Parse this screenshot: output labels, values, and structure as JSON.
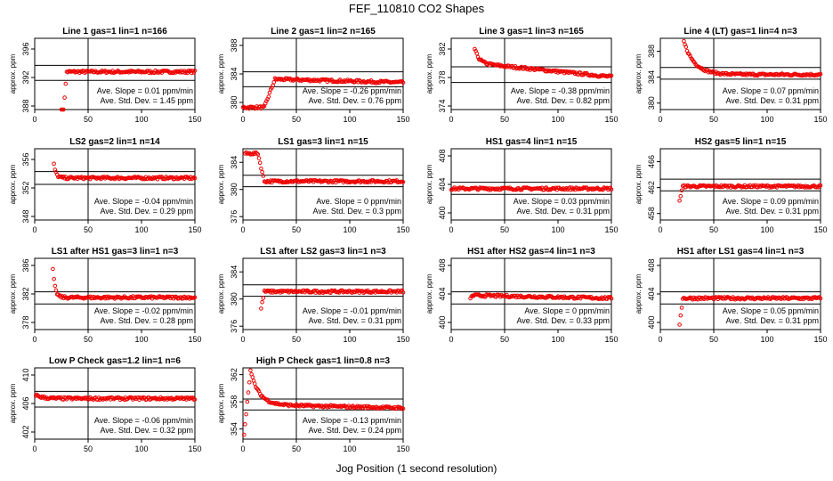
{
  "figure": {
    "title": "FEF_110810  CO2 Shapes",
    "xlabel": "Jog Position (1 second resolution)",
    "ylabel": "approx. ppm",
    "slope_label": "Ave. Slope =",
    "slope_unit": "ppm/min",
    "sd_label": "Ave. Std. Dev. =",
    "sd_unit": "ppm",
    "colors": {
      "points": "#ee0000",
      "axis": "#000000"
    }
  },
  "chart_data": [
    {
      "type": "scatter",
      "title": "Line 1 gas=1 lin=1 n=166",
      "xlim": [
        0,
        150
      ],
      "xticks": [
        0,
        50,
        100,
        150
      ],
      "ylim": [
        387.5,
        397.5
      ],
      "yticks": [
        388,
        392,
        396
      ],
      "hlines": [
        391.6,
        393.7
      ],
      "slope": "0.01",
      "sd": "1.45",
      "shape": {
        "x_start": 25,
        "start": 384,
        "plateau": 392.8,
        "rise_len": 5,
        "kind": "rise"
      }
    },
    {
      "type": "scatter",
      "title": "Line 2 gas=1 lin=2 n=165",
      "xlim": [
        0,
        150
      ],
      "xticks": [
        0,
        50,
        100,
        150
      ],
      "ylim": [
        379,
        389
      ],
      "yticks": [
        380,
        384,
        388
      ],
      "hlines": [
        382.2,
        384.3
      ],
      "slope": "-0.26",
      "sd": "0.76",
      "shape": {
        "x_start": 0,
        "start": 379.3,
        "plateau": 383.3,
        "plateau_end": 382.8,
        "flat_until": 20,
        "rise_len": 10,
        "kind": "rise"
      }
    },
    {
      "type": "scatter",
      "title": "Line 3 gas=1 lin=3 n=165",
      "xlim": [
        0,
        150
      ],
      "xticks": [
        0,
        50,
        100,
        150
      ],
      "ylim": [
        373.5,
        383.5
      ],
      "yticks": [
        374,
        378,
        382
      ],
      "hlines": [
        377.3,
        379.5
      ],
      "slope": "-0.38",
      "sd": "0.82",
      "shape": {
        "x_start": 22,
        "start": 382,
        "plateau": 380,
        "plateau_end": 378.1,
        "decay_len": 4,
        "kind": "decay"
      }
    },
    {
      "type": "scatter",
      "title": "Line 4 (LT) gas=1 lin=4 n=3",
      "xlim": [
        0,
        150
      ],
      "xticks": [
        0,
        50,
        100,
        150
      ],
      "ylim": [
        379,
        390
      ],
      "yticks": [
        380,
        384,
        388
      ],
      "hlines": [
        383.7,
        385.5
      ],
      "slope": "0.07",
      "sd": "0.31",
      "shape": {
        "x_start": 22,
        "start": 389.5,
        "plateau": 384.4,
        "decay_len": 10,
        "kind": "decay"
      }
    },
    {
      "type": "scatter",
      "title": "LS2 gas=2 lin=1 n=14",
      "xlim": [
        0,
        150
      ],
      "xticks": [
        0,
        50,
        100,
        150
      ],
      "ylim": [
        347.5,
        357.5
      ],
      "yticks": [
        348,
        352,
        356
      ],
      "hlines": [
        352.5,
        354.3
      ],
      "slope": "-0.04",
      "sd": "0.29",
      "shape": {
        "x_start": 18,
        "start": 355.3,
        "plateau": 353.4,
        "decay_len": 2,
        "kind": "decay"
      }
    },
    {
      "type": "scatter",
      "title": "LS1 gas=3 lin=1 n=15",
      "xlim": [
        0,
        150
      ],
      "xticks": [
        0,
        50,
        100,
        150
      ],
      "ylim": [
        375.5,
        386
      ],
      "yticks": [
        376,
        380,
        384
      ],
      "hlines": [
        380.4,
        382.1
      ],
      "slope": "0",
      "sd": "0.3",
      "shape": {
        "x_start": 2,
        "start": 385.3,
        "plateau": 381.2,
        "flat_until": 14,
        "decay_len": 6,
        "kind": "drop"
      }
    },
    {
      "type": "scatter",
      "title": "HS1 gas=4 lin=1 n=15",
      "xlim": [
        0,
        150
      ],
      "xticks": [
        0,
        50,
        100,
        150
      ],
      "ylim": [
        399,
        409
      ],
      "yticks": [
        400,
        404,
        408
      ],
      "hlines": [
        402.6,
        404.3
      ],
      "slope": "0.03",
      "sd": "0.31",
      "shape": {
        "x_start": 0,
        "start": 403.4,
        "plateau": 403.4,
        "kind": "flat"
      }
    },
    {
      "type": "scatter",
      "title": "HS2 gas=5 lin=1 n=15",
      "xlim": [
        0,
        150
      ],
      "xticks": [
        0,
        50,
        100,
        150
      ],
      "ylim": [
        457,
        468
      ],
      "yticks": [
        458,
        462,
        466
      ],
      "hlines": [
        461.5,
        463.3
      ],
      "slope": "0.09",
      "sd": "0.31",
      "shape": {
        "x_start": 18,
        "start": 460,
        "plateau": 462.2,
        "rise_len": 3,
        "kind": "rise"
      }
    },
    {
      "type": "scatter",
      "title": "LS1 after HS1 gas=3 lin=1 n=3",
      "xlim": [
        0,
        150
      ],
      "xticks": [
        0,
        50,
        100,
        150
      ],
      "ylim": [
        377,
        387
      ],
      "yticks": [
        378,
        382,
        386
      ],
      "hlines": [
        380.6,
        382.3
      ],
      "slope": "-0.02",
      "sd": "0.28",
      "shape": {
        "x_start": 17,
        "start": 385.5,
        "plateau": 381.5,
        "decay_len": 2,
        "kind": "decay"
      }
    },
    {
      "type": "scatter",
      "title": "LS1 after LS2 gas=3 lin=1 n=3",
      "xlim": [
        0,
        150
      ],
      "xticks": [
        0,
        50,
        100,
        150
      ],
      "ylim": [
        375.5,
        386
      ],
      "yticks": [
        376,
        380,
        384
      ],
      "hlines": [
        380.4,
        382.1
      ],
      "slope": "-0.01",
      "sd": "0.31",
      "shape": {
        "x_start": 17,
        "start": 378.6,
        "plateau": 381.1,
        "rise_len": 3,
        "kind": "rise"
      }
    },
    {
      "type": "scatter",
      "title": "HS1 after HS2 gas=4 lin=1 n=3",
      "xlim": [
        0,
        150
      ],
      "xticks": [
        0,
        50,
        100,
        150
      ],
      "ylim": [
        399,
        409
      ],
      "yticks": [
        400,
        404,
        408
      ],
      "hlines": [
        402.6,
        404.3
      ],
      "slope": "0",
      "sd": "0.33",
      "shape": {
        "x_start": 18,
        "start": 403.3,
        "plateau": 403.8,
        "plateau_end": 403.4,
        "rise_len": 2,
        "kind": "rise"
      }
    },
    {
      "type": "scatter",
      "title": "HS1 after LS1 gas=4 lin=1 n=3",
      "xlim": [
        0,
        150
      ],
      "xticks": [
        0,
        50,
        100,
        150
      ],
      "ylim": [
        399,
        409
      ],
      "yticks": [
        400,
        404,
        408
      ],
      "hlines": [
        402.6,
        404.3
      ],
      "slope": "0.05",
      "sd": "0.31",
      "shape": {
        "x_start": 18,
        "start": 399.8,
        "plateau": 403.4,
        "rise_len": 3,
        "kind": "rise"
      }
    },
    {
      "type": "scatter",
      "title": "Low P Check gas=1.2 lin=1 n=6",
      "xlim": [
        0,
        150
      ],
      "xticks": [
        0,
        50,
        100,
        150
      ],
      "ylim": [
        401,
        411
      ],
      "yticks": [
        402,
        406,
        410
      ],
      "hlines": [
        405.5,
        407.7
      ],
      "slope": "-0.06",
      "sd": "0.32",
      "shape": {
        "x_start": 1,
        "start": 407.2,
        "plateau": 406.7,
        "decay_len": 6,
        "kind": "decay"
      }
    },
    {
      "type": "scatter",
      "title": "High P Check gas=1 lin=0.8 n=3",
      "xlim": [
        0,
        150
      ],
      "xticks": [
        0,
        50,
        100,
        150
      ],
      "ylim": [
        352.5,
        363
      ],
      "yticks": [
        354,
        358,
        362
      ],
      "hlines": [
        356.8,
        358.4
      ],
      "slope": "-0.13",
      "sd": "0.24",
      "shape": {
        "x_start": 1,
        "start": 353.2,
        "peak": 362.6,
        "plateau": 357.6,
        "plateau_end": 357.1,
        "kind": "spike"
      }
    }
  ]
}
